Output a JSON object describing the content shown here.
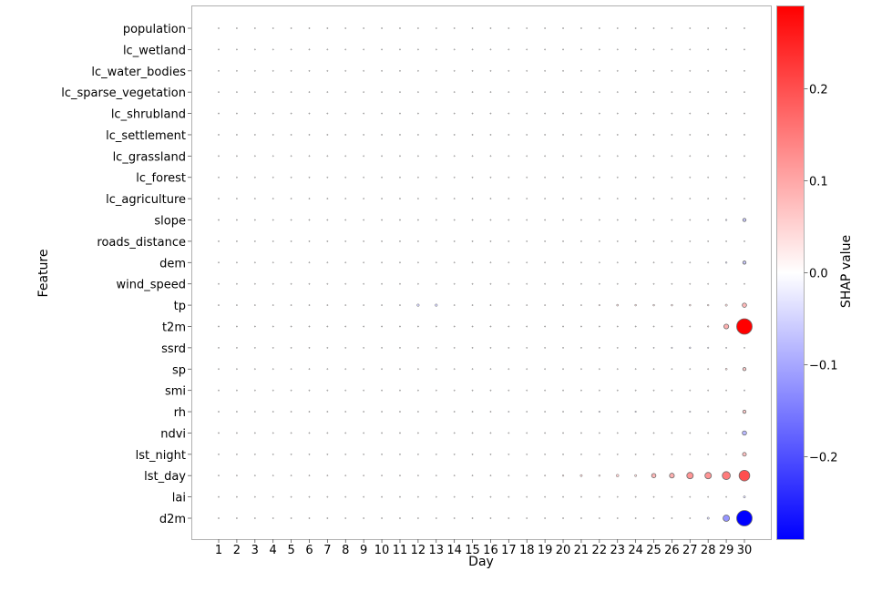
{
  "chart_data": {
    "type": "scatter",
    "subtype": "bubble-grid",
    "title": "",
    "xlabel": "Day",
    "ylabel": "Feature",
    "colorbar_label": "SHAP value",
    "colormap": "bwr",
    "color_range": [
      -0.29,
      0.29
    ],
    "colorbar_ticks": [
      0.2,
      0.1,
      0.0,
      -0.1,
      -0.2
    ],
    "colorbar_tick_labels": [
      "0.2",
      "0.1",
      "0.0",
      "−0.1",
      "−0.2"
    ],
    "size_encoding": "abs(SHAP value)",
    "grid": false,
    "x": [
      1,
      2,
      3,
      4,
      5,
      6,
      7,
      8,
      9,
      10,
      11,
      12,
      13,
      14,
      15,
      16,
      17,
      18,
      19,
      20,
      21,
      22,
      23,
      24,
      25,
      26,
      27,
      28,
      29,
      30
    ],
    "features": [
      "population",
      "lc_wetland",
      "lc_water_bodies",
      "lc_sparse_vegetation",
      "lc_shrubland",
      "lc_settlement",
      "lc_grassland",
      "lc_forest",
      "lc_agriculture",
      "slope",
      "roads_distance",
      "dem",
      "wind_speed",
      "tp",
      "t2m",
      "ssrd",
      "sp",
      "smi",
      "rh",
      "ndvi",
      "lst_night",
      "lst_day",
      "lai",
      "d2m"
    ],
    "series": [
      {
        "name": "population",
        "values": [
          0.004,
          0.004,
          0.004,
          0.004,
          0.003,
          0.004,
          0.003,
          0.003,
          0.003,
          0.003,
          0.003,
          0.004,
          0.004,
          0.003,
          0.003,
          0.003,
          0.003,
          0.003,
          0.003,
          0.003,
          0.003,
          0.003,
          0.003,
          0.003,
          0.003,
          0.003,
          0.004,
          0.004,
          0.004,
          0.004
        ]
      },
      {
        "name": "lc_wetland",
        "values": [
          0.002,
          0.002,
          0.002,
          0.002,
          0.002,
          0.002,
          0.002,
          0.002,
          0.002,
          0.002,
          0.002,
          0.002,
          0.002,
          0.002,
          0.002,
          0.002,
          0.002,
          0.002,
          0.002,
          0.002,
          0.002,
          0.002,
          0.002,
          0.002,
          0.002,
          0.002,
          0.002,
          0.002,
          0.002,
          0.002
        ]
      },
      {
        "name": "lc_water_bodies",
        "values": [
          0.002,
          0.002,
          0.003,
          0.003,
          0.003,
          0.002,
          0.003,
          0.003,
          0.004,
          0.004,
          0.003,
          0.004,
          0.003,
          0.005,
          0.003,
          0.003,
          0.004,
          0.004,
          0.004,
          0.003,
          0.003,
          0.003,
          0.004,
          0.003,
          0.003,
          0.003,
          0.003,
          0.004,
          0.004,
          0.004
        ]
      },
      {
        "name": "lc_sparse_vegetation",
        "values": [
          0.004,
          0.004,
          0.004,
          0.004,
          0.003,
          0.003,
          0.003,
          0.003,
          0.004,
          0.004,
          0.004,
          0.004,
          0.004,
          0.004,
          0.004,
          0.003,
          0.003,
          0.004,
          0.004,
          0.004,
          0.003,
          0.003,
          0.003,
          0.003,
          0.003,
          0.005,
          0.005,
          0.003,
          0.003,
          0.007
        ]
      },
      {
        "name": "lc_shrubland",
        "values": [
          0.005,
          0.005,
          0.005,
          0.005,
          0.005,
          0.005,
          0.005,
          0.005,
          0.005,
          0.005,
          0.005,
          0.005,
          0.005,
          0.005,
          0.005,
          0.006,
          0.006,
          0.006,
          0.006,
          0.006,
          0.006,
          0.006,
          0.006,
          0.007,
          0.007,
          0.007,
          0.007,
          0.008,
          0.009,
          0.012
        ]
      },
      {
        "name": "lc_settlement",
        "values": [
          0.003,
          0.003,
          0.003,
          0.003,
          0.003,
          0.003,
          0.003,
          0.003,
          0.003,
          0.003,
          0.003,
          0.003,
          0.003,
          0.003,
          0.003,
          0.003,
          0.003,
          0.003,
          0.003,
          0.003,
          0.003,
          0.003,
          0.003,
          0.003,
          0.003,
          0.003,
          0.003,
          0.003,
          0.004,
          0.008
        ]
      },
      {
        "name": "lc_grassland",
        "values": [
          0.004,
          0.004,
          0.004,
          0.004,
          0.004,
          0.004,
          0.004,
          0.004,
          0.004,
          0.004,
          0.004,
          0.004,
          0.004,
          0.005,
          0.005,
          0.005,
          0.005,
          0.005,
          0.005,
          0.005,
          0.005,
          0.005,
          0.005,
          0.005,
          0.005,
          0.005,
          0.005,
          0.005,
          0.004,
          0.006
        ]
      },
      {
        "name": "lc_forest",
        "values": [
          0.008,
          0.009,
          0.007,
          0.007,
          0.006,
          0.005,
          0.005,
          0.005,
          0.005,
          0.005,
          0.004,
          0.004,
          0.005,
          0.008,
          0.008,
          0.008,
          0.006,
          0.006,
          0.008,
          0.009,
          0.006,
          0.006,
          0.006,
          0.009,
          0.006,
          0.006,
          0.006,
          0.005,
          0.003,
          0.005
        ]
      },
      {
        "name": "lc_agriculture",
        "values": [
          0.007,
          0.007,
          0.006,
          0.005,
          0.005,
          0.005,
          0.005,
          0.005,
          0.005,
          0.005,
          0.006,
          0.006,
          0.006,
          0.006,
          0.006,
          0.005,
          0.005,
          0.006,
          0.005,
          0.005,
          0.005,
          0.006,
          0.006,
          0.005,
          0.006,
          0.006,
          0.006,
          0.006,
          0.009,
          0.014
        ]
      },
      {
        "name": "slope",
        "values": [
          0.004,
          0.004,
          0.004,
          0.004,
          0.004,
          0.004,
          0.004,
          0.004,
          0.003,
          0.004,
          0.004,
          0.003,
          0.004,
          0.004,
          0.004,
          0.003,
          0.004,
          0.003,
          0.003,
          0.003,
          0.004,
          0.004,
          0.003,
          0.004,
          -0.003,
          0.004,
          0.004,
          -0.01,
          -0.028,
          -0.06
        ]
      },
      {
        "name": "roads_distance",
        "values": [
          0.004,
          0.005,
          0.005,
          0.005,
          0.005,
          0.005,
          0.005,
          0.005,
          0.005,
          0.005,
          0.005,
          0.005,
          0.005,
          0.005,
          0.005,
          0.005,
          0.005,
          0.005,
          0.005,
          0.005,
          0.005,
          0.005,
          0.006,
          0.006,
          0.006,
          0.006,
          0.006,
          0.006,
          0.004,
          -0.008
        ]
      },
      {
        "name": "dem",
        "values": [
          0.004,
          0.004,
          0.005,
          0.005,
          0.005,
          0.005,
          0.005,
          0.005,
          0.005,
          0.005,
          0.005,
          0.005,
          0.005,
          0.005,
          0.005,
          0.005,
          0.005,
          0.005,
          0.004,
          0.005,
          0.004,
          0.005,
          0.005,
          0.006,
          0.007,
          -0.008,
          -0.008,
          -0.012,
          -0.03,
          -0.06
        ]
      },
      {
        "name": "wind_speed",
        "values": [
          0.003,
          0.004,
          0.005,
          0.005,
          0.006,
          0.006,
          0.006,
          0.006,
          0.005,
          0.005,
          0.005,
          0.005,
          0.006,
          0.005,
          0.007,
          0.006,
          0.006,
          0.006,
          0.006,
          0.006,
          0.006,
          0.004,
          0.004,
          0.006,
          0.005,
          0.007,
          0.006,
          0.006,
          0.006,
          0.006
        ]
      },
      {
        "name": "tp",
        "values": [
          0.012,
          0.008,
          0.008,
          0.008,
          0.008,
          0.009,
          0.01,
          0.01,
          0.008,
          0.006,
          0.005,
          -0.045,
          -0.045,
          0.005,
          0.012,
          0.018,
          0.02,
          0.012,
          0.012,
          -0.014,
          0.018,
          0.025,
          0.035,
          0.032,
          0.032,
          0.032,
          0.032,
          0.03,
          0.04,
          0.08
        ]
      },
      {
        "name": "t2m",
        "values": [
          0.003,
          0.004,
          0.004,
          0.004,
          0.004,
          0.005,
          0.006,
          0.006,
          0.005,
          0.005,
          0.004,
          0.006,
          0.004,
          0.004,
          0.003,
          0.003,
          0.003,
          0.004,
          0.005,
          0.008,
          0.007,
          0.007,
          0.007,
          0.004,
          0.004,
          0.004,
          0.003,
          0.025,
          0.09,
          0.29
        ]
      },
      {
        "name": "ssrd",
        "values": [
          0.008,
          0.008,
          0.007,
          0.007,
          0.006,
          0.005,
          0.003,
          0.003,
          0.004,
          0.003,
          0.003,
          0.004,
          0.004,
          0.004,
          0.006,
          0.003,
          0.003,
          0.003,
          0.005,
          0.005,
          0.007,
          0.007,
          0.007,
          -0.012,
          -0.02,
          -0.025,
          -0.03,
          -0.025,
          -0.022,
          -0.012
        ]
      },
      {
        "name": "sp",
        "values": [
          0.004,
          0.004,
          0.004,
          0.004,
          0.004,
          0.004,
          0.005,
          0.005,
          0.005,
          0.005,
          0.005,
          0.005,
          0.005,
          0.005,
          0.005,
          0.005,
          0.005,
          0.005,
          0.005,
          0.005,
          0.004,
          0.004,
          0.004,
          0.005,
          0.005,
          0.006,
          0.01,
          0.022,
          0.035,
          0.06
        ]
      },
      {
        "name": "smi",
        "values": [
          0.004,
          0.005,
          0.005,
          0.005,
          0.005,
          0.005,
          0.005,
          0.005,
          0.005,
          0.005,
          0.005,
          0.005,
          0.005,
          0.005,
          0.006,
          0.006,
          0.006,
          0.006,
          0.006,
          0.006,
          0.006,
          0.006,
          0.006,
          0.006,
          0.006,
          0.006,
          0.006,
          0.006,
          0.005,
          -0.022
        ]
      },
      {
        "name": "rh",
        "values": [
          0.006,
          0.002,
          0.004,
          0.006,
          0.008,
          0.012,
          0.008,
          0.014,
          0.01,
          0.008,
          0.012,
          0.005,
          0.009,
          0.006,
          0.006,
          0.009,
          -0.014,
          0.005,
          0.008,
          0.005,
          -0.022,
          -0.026,
          0.007,
          -0.026,
          -0.018,
          -0.022,
          -0.026,
          -0.018,
          0.008,
          0.06
        ]
      },
      {
        "name": "ndvi",
        "values": [
          0.009,
          0.009,
          0.009,
          0.009,
          0.009,
          0.009,
          0.009,
          0.009,
          0.009,
          0.009,
          0.009,
          0.009,
          0.009,
          0.008,
          0.009,
          0.009,
          0.009,
          0.009,
          0.009,
          0.009,
          0.009,
          0.009,
          0.009,
          0.006,
          0.008,
          0.009,
          0.006,
          0.005,
          0.006,
          -0.08
        ]
      },
      {
        "name": "lst_night",
        "values": [
          0.006,
          0.006,
          0.003,
          0.006,
          0.004,
          0.002,
          0.003,
          0.002,
          0.004,
          0.006,
          0.002,
          0.003,
          0.005,
          0.003,
          0.003,
          0.002,
          0.002,
          0.004,
          0.005,
          0.005,
          0.005,
          0.005,
          0.008,
          0.008,
          0.008,
          0.012,
          0.014,
          -0.018,
          0.006,
          0.07
        ]
      },
      {
        "name": "lst_day",
        "values": [
          0.008,
          0.012,
          0.005,
          0.012,
          0.007,
          0.013,
          0.016,
          0.008,
          0.018,
          0.014,
          0.014,
          0.014,
          0.01,
          0.014,
          0.01,
          0.015,
          0.007,
          0.006,
          0.022,
          0.028,
          0.04,
          0.03,
          0.05,
          0.04,
          0.08,
          0.09,
          0.12,
          0.12,
          0.15,
          0.2
        ]
      },
      {
        "name": "lai",
        "values": [
          0.006,
          0.006,
          0.006,
          0.006,
          0.006,
          0.006,
          0.006,
          0.006,
          0.005,
          0.006,
          0.006,
          0.006,
          0.006,
          0.006,
          0.006,
          0.006,
          0.006,
          0.006,
          0.006,
          0.006,
          0.006,
          0.006,
          0.006,
          0.005,
          0.007,
          0.007,
          0.006,
          0.006,
          0.005,
          -0.04
        ]
      },
      {
        "name": "d2m",
        "values": [
          0.01,
          0.01,
          0.01,
          0.01,
          0.009,
          0.009,
          0.009,
          0.01,
          0.01,
          0.01,
          0.01,
          0.01,
          0.01,
          0.01,
          0.009,
          0.009,
          0.01,
          0.01,
          0.01,
          0.01,
          0.01,
          0.009,
          0.008,
          0.007,
          0.008,
          0.007,
          0.01,
          -0.04,
          -0.12,
          -0.29
        ]
      }
    ]
  },
  "axes": {
    "xlabel": "Day",
    "ylabel": "Feature",
    "colorbar_label": "SHAP value"
  }
}
